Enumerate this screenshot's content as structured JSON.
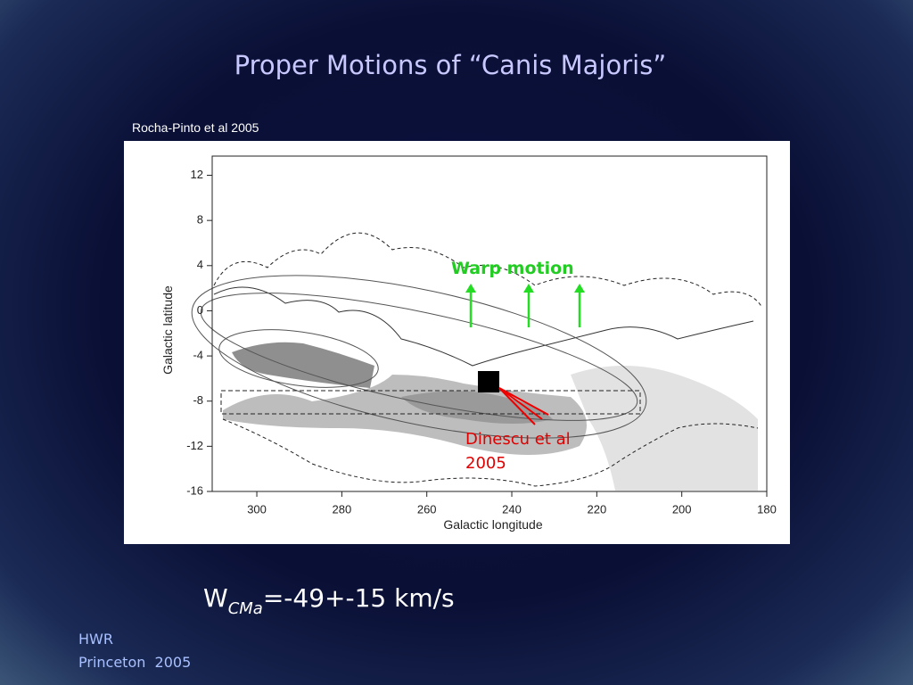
{
  "title": "Proper Motions of “Canis Majoris”",
  "citation": "Rocha-Pinto et al 2005",
  "figure": {
    "x_label": "Galactic longitude",
    "y_label": "Galactic latitude",
    "xlim": [
      310.5,
      180
    ],
    "ylim": [
      -16,
      13.7
    ],
    "xticks": [
      300,
      280,
      260,
      240,
      220,
      200,
      180
    ],
    "yticks": [
      12,
      8,
      4,
      0,
      -4,
      -8,
      -12,
      -16
    ],
    "warp_label": "Warp motion",
    "dinescu_label": [
      "Dinescu et al",
      "2005"
    ]
  },
  "formula": {
    "symbol": "W",
    "subscript": "CMa",
    "value": "=-49+-15 km/s"
  },
  "footer": [
    "HWR",
    "Princeton  2005"
  ]
}
